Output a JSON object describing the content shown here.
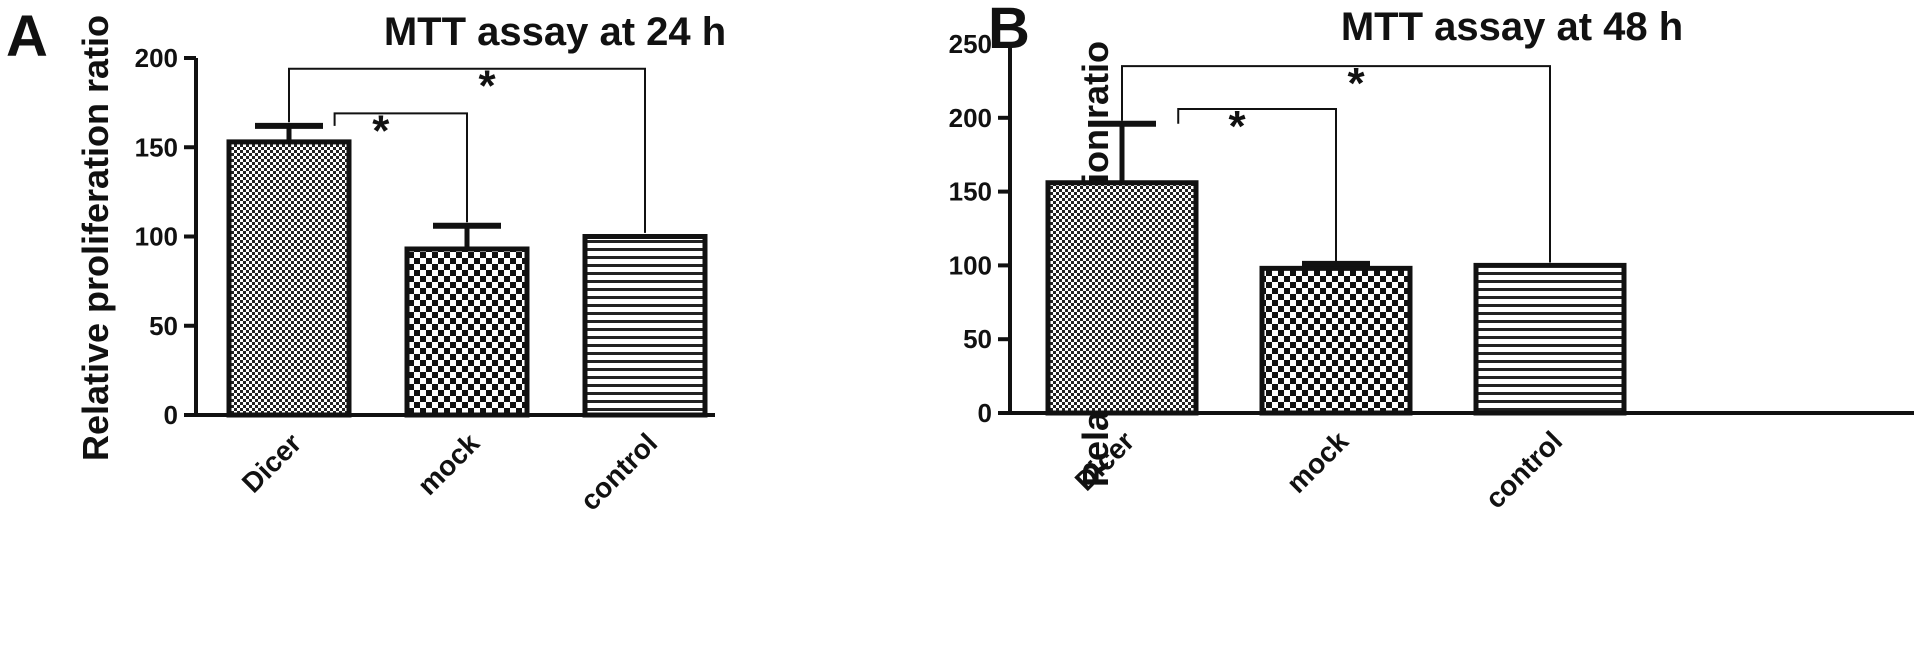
{
  "chart_data": [
    {
      "type": "bar",
      "panel": "A",
      "title": "MTT assay at 24 h",
      "ylabel": "Relative proliferation ratio",
      "xlabel": "",
      "ylim": [
        0,
        200
      ],
      "yticks": [
        "0",
        "50",
        "100",
        "150",
        "200"
      ],
      "categories": [
        "Dicer",
        "mock",
        "control"
      ],
      "values": [
        153,
        93,
        100
      ],
      "errors": [
        9,
        13,
        0
      ],
      "patterns": [
        "fine-dots",
        "checker",
        "horizontal-lines"
      ],
      "significance": [
        {
          "from": 0,
          "to": 1,
          "label": "*",
          "y": 169
        },
        {
          "from": 0,
          "to": 2,
          "label": "*",
          "y": 194
        }
      ]
    },
    {
      "type": "bar",
      "panel": "B",
      "title": "MTT assay at 48 h",
      "ylabel": "Relative proliferation ratio",
      "xlabel": "",
      "ylim": [
        0,
        250
      ],
      "yticks": [
        "0",
        "50",
        "100",
        "150",
        "200",
        "250"
      ],
      "categories": [
        "Dicer",
        "mock",
        "control"
      ],
      "values": [
        156,
        98,
        100
      ],
      "errors": [
        40,
        3,
        0
      ],
      "patterns": [
        "fine-dots",
        "checker",
        "horizontal-lines"
      ],
      "significance": [
        {
          "from": 0,
          "to": 1,
          "label": "*",
          "y": 206
        },
        {
          "from": 0,
          "to": 2,
          "label": "*",
          "y": 235
        }
      ]
    }
  ]
}
